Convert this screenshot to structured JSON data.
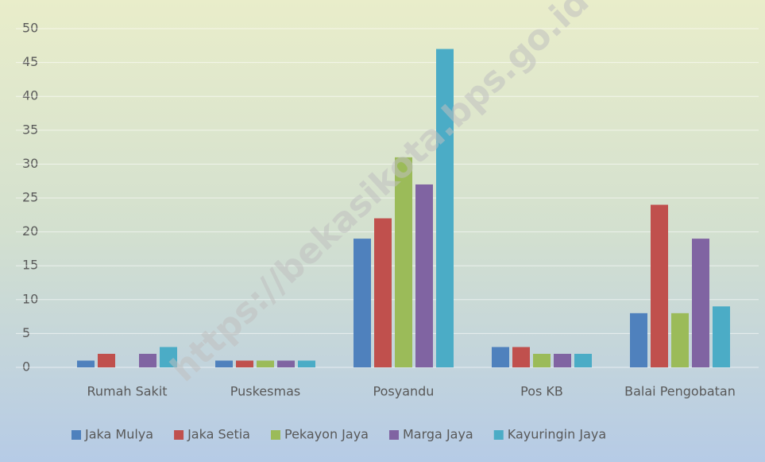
{
  "chart_data": {
    "type": "bar",
    "categories": [
      "Rumah Sakit",
      "Puskesmas",
      "Posyandu",
      "Pos KB",
      "Balai Pengobatan"
    ],
    "series": [
      {
        "name": "Jaka Mulya",
        "color": "#4f81bd",
        "values": [
          1,
          1,
          19,
          3,
          8
        ]
      },
      {
        "name": "Jaka Setia",
        "color": "#c0504d",
        "values": [
          2,
          1,
          22,
          3,
          24
        ]
      },
      {
        "name": "Pekayon Jaya",
        "color": "#9bbb59",
        "values": [
          0,
          1,
          31,
          2,
          8
        ]
      },
      {
        "name": "Marga Jaya",
        "color": "#8064a2",
        "values": [
          2,
          1,
          27,
          2,
          19
        ]
      },
      {
        "name": "Kayuringin Jaya",
        "color": "#4bacc6",
        "values": [
          3,
          1,
          47,
          2,
          9
        ]
      }
    ],
    "ylim": [
      0,
      50
    ],
    "yticks": [
      0,
      5,
      10,
      15,
      20,
      25,
      30,
      35,
      40,
      45,
      50
    ],
    "grid": true,
    "legend": "bottom",
    "watermark": "https://bekasikota.bps.go.id"
  }
}
